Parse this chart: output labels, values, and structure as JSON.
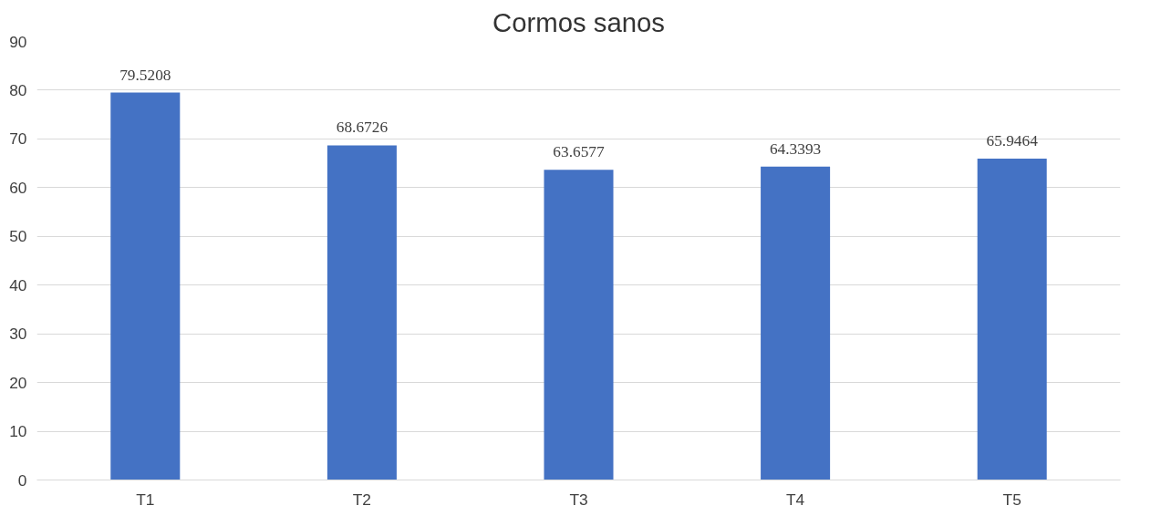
{
  "chart_data": {
    "type": "bar",
    "title": "Cormos sanos",
    "categories": [
      "T1",
      "T2",
      "T3",
      "T4",
      "T5"
    ],
    "values": [
      79.5208,
      68.6726,
      63.6577,
      64.3393,
      65.9464
    ],
    "color": "#4472c4",
    "ylim": [
      0,
      90
    ],
    "yticks": [
      0,
      10,
      20,
      30,
      40,
      50,
      60,
      70,
      80,
      90
    ],
    "grid": "y",
    "data_labels": true
  }
}
